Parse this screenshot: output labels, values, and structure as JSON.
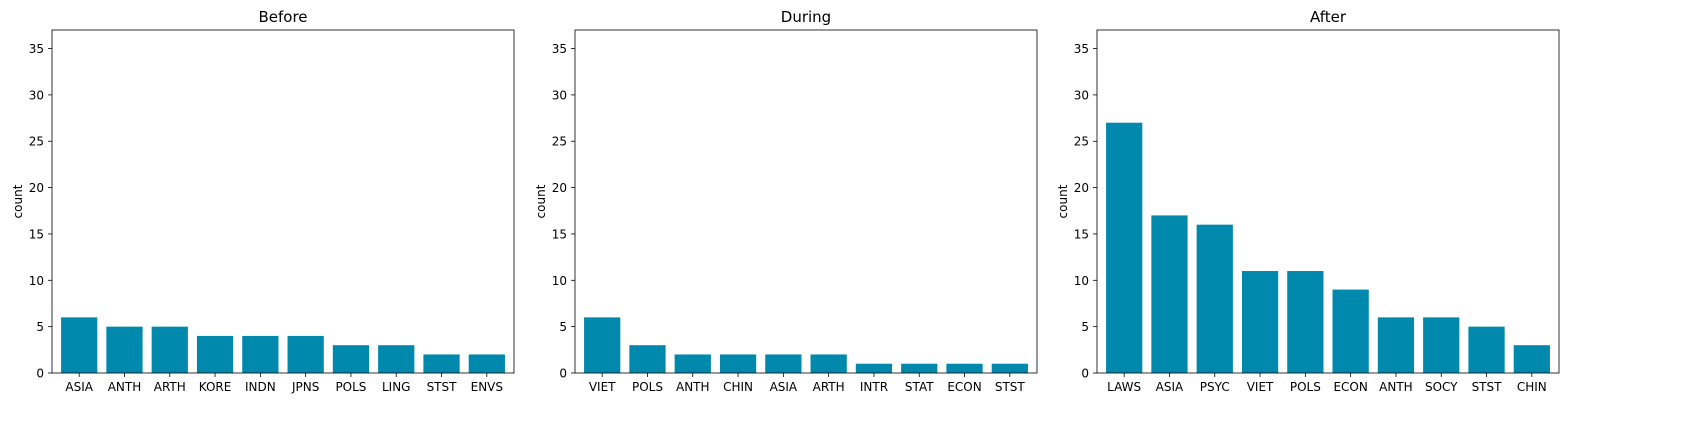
{
  "chart_data": [
    {
      "type": "bar",
      "title": "Before",
      "xlabel": "",
      "ylabel": "count",
      "ylim": [
        0,
        37
      ],
      "yticks": [
        0,
        5,
        10,
        15,
        20,
        25,
        30,
        35
      ],
      "categories": [
        "ASIA",
        "ANTH",
        "ARTH",
        "KORE",
        "INDN",
        "JPNS",
        "POLS",
        "LING",
        "STST",
        "ENVS"
      ],
      "values": [
        6,
        5,
        5,
        4,
        4,
        4,
        3,
        3,
        2,
        2
      ],
      "color": "#0088ad",
      "grid": false
    },
    {
      "type": "bar",
      "title": "During",
      "xlabel": "",
      "ylabel": "count",
      "ylim": [
        0,
        37
      ],
      "yticks": [
        0,
        5,
        10,
        15,
        20,
        25,
        30,
        35
      ],
      "categories": [
        "VIET",
        "POLS",
        "ANTH",
        "CHIN",
        "ASIA",
        "ARTH",
        "INTR",
        "STAT",
        "ECON",
        "STST"
      ],
      "values": [
        6,
        3,
        2,
        2,
        2,
        2,
        1,
        1,
        1,
        1
      ],
      "color": "#0088ad",
      "grid": false
    },
    {
      "type": "bar",
      "title": "After",
      "xlabel": "",
      "ylabel": "count",
      "ylim": [
        0,
        37
      ],
      "yticks": [
        0,
        5,
        10,
        15,
        20,
        25,
        30,
        35
      ],
      "categories": [
        "LAWS",
        "ASIA",
        "PSYC",
        "VIET",
        "POLS",
        "ECON",
        "ANTH",
        "SOCY",
        "STST",
        "CHIN"
      ],
      "values": [
        27,
        17,
        16,
        11,
        11,
        9,
        6,
        6,
        5,
        3
      ],
      "color": "#0088ad",
      "grid": false
    }
  ]
}
